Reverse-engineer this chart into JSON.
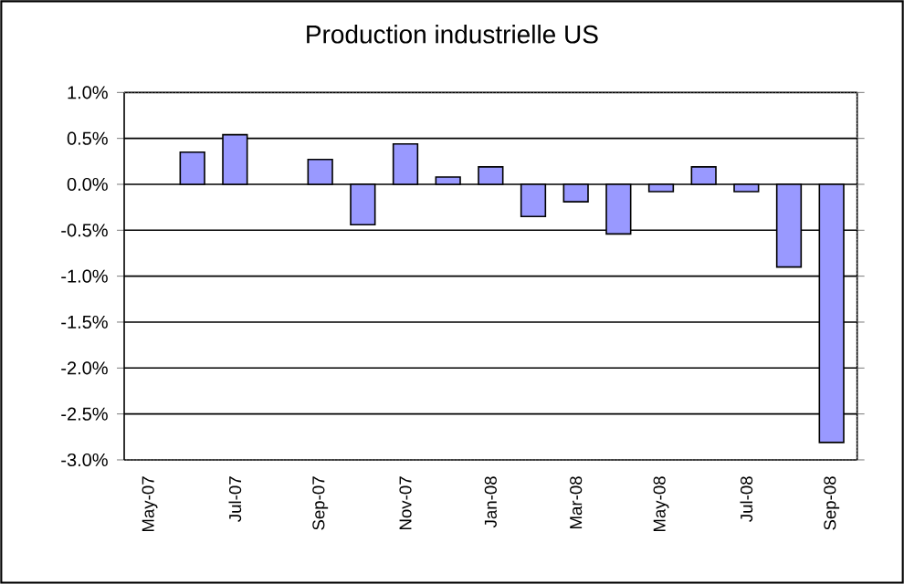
{
  "chart_data": {
    "type": "bar",
    "title": "Production industrielle US",
    "categories": [
      "May-07",
      null,
      "Jul-07",
      null,
      "Sep-07",
      null,
      "Nov-07",
      null,
      "Jan-08",
      null,
      "Mar-08",
      null,
      "May-08",
      null,
      "Jul-08",
      null,
      "Sep-08"
    ],
    "values": [
      null,
      0.35,
      0.54,
      null,
      0.27,
      -0.44,
      0.44,
      0.08,
      0.19,
      -0.35,
      -0.19,
      -0.54,
      -0.08,
      0.19,
      -0.08,
      -0.9,
      -2.81
    ],
    "color": "#9999ff",
    "ylim": [
      -3,
      1
    ],
    "yticks": [
      {
        "value": -3,
        "label": "-3.0%"
      },
      {
        "value": -2.5,
        "label": "-2.5%"
      },
      {
        "value": -2,
        "label": "-2.0%"
      },
      {
        "value": -1.5,
        "label": "-1.5%"
      },
      {
        "value": -1,
        "label": "-1.0%"
      },
      {
        "value": -0.5,
        "label": "-0.5%"
      },
      {
        "value": 0,
        "label": "0.0%"
      },
      {
        "value": 0.5,
        "label": "0.5%"
      },
      {
        "value": 1,
        "label": "1.0%"
      }
    ],
    "grid": "y"
  }
}
